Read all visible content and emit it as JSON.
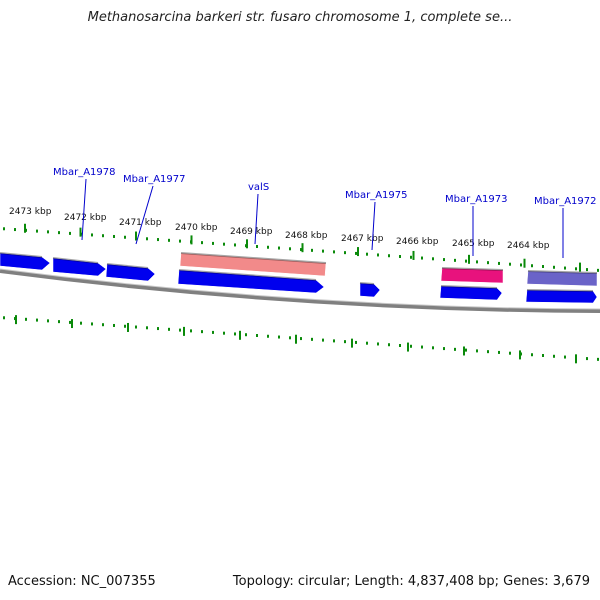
{
  "header": {
    "title": "Methanosarcina barkeri str. fusaro chromosome 1, complete se..."
  },
  "footer": {
    "accession": "Accession: NC_007355",
    "summary": "Topology: circular; Length: 4,837,408 bp; Genes: 3,679"
  },
  "colors": {
    "gene_forward": "#0000ee",
    "trna": "#f28a8a",
    "highlight_pink": "#e8127d",
    "highlight_purple": "#6a63c8",
    "label_blue": "#0000cc",
    "tick_green": "#0a8a0a",
    "backbone": "#808080"
  },
  "ruler": {
    "labels": [
      "2473 kbp",
      "2472 kbp",
      "2471 kbp",
      "2470 kbp",
      "2469 kbp",
      "2468 kbp",
      "2467 kbp",
      "2466 kbp",
      "2465 kbp",
      "2464 kbp"
    ]
  },
  "gene_labels": [
    "Mbar_A1978",
    "Mbar_A1977",
    "valS",
    "Mbar_A1975",
    "Mbar_A1973",
    "Mbar_A1972"
  ],
  "features": [
    {
      "name": "gene-1",
      "type": "gene"
    },
    {
      "name": "gene-2",
      "type": "gene"
    },
    {
      "name": "gene-3",
      "type": "gene"
    },
    {
      "name": "valS-cds",
      "type": "gene"
    },
    {
      "name": "valS-rna",
      "type": "trna"
    },
    {
      "name": "gene-small",
      "type": "gene"
    },
    {
      "name": "gene-1973",
      "type": "gene"
    },
    {
      "name": "gene-1973-pink",
      "type": "highlight_pink"
    },
    {
      "name": "gene-1972",
      "type": "gene"
    },
    {
      "name": "gene-1972-purple",
      "type": "highlight_purple"
    }
  ]
}
